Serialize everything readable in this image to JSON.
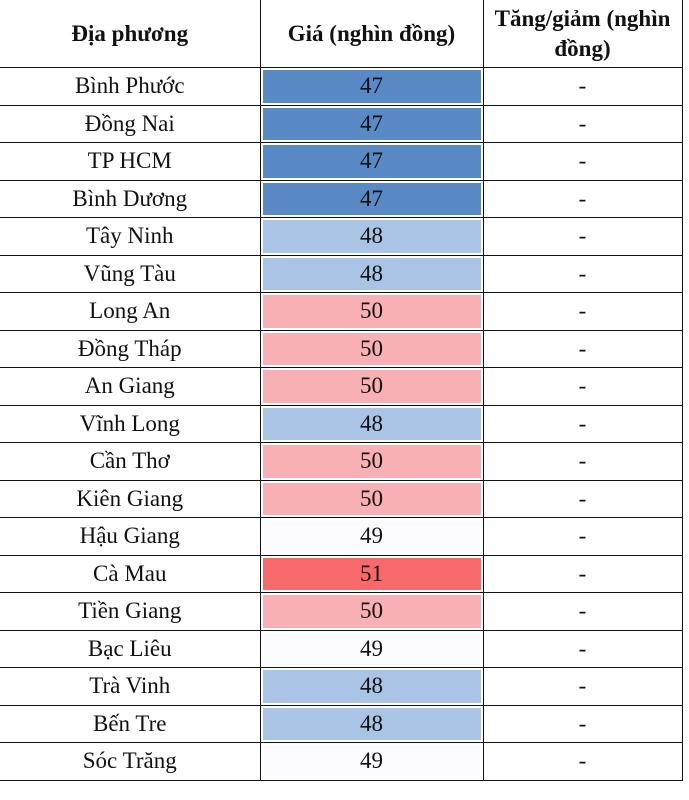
{
  "headers": {
    "location": "Địa phương",
    "price": "Giá (nghìn đồng)",
    "change": "Tăng/giảm (nghìn đồng)"
  },
  "scale_colors": {
    "47": "#5a8ac6",
    "48": "#a9c4e4",
    "49": "#fcfcff",
    "50": "#f8b0b5",
    "51": "#f8696b"
  },
  "rows": [
    {
      "location": "Bình Phước",
      "price": "47",
      "change": "-"
    },
    {
      "location": "Đồng Nai",
      "price": "47",
      "change": "-"
    },
    {
      "location": "TP HCM",
      "price": "47",
      "change": "-"
    },
    {
      "location": "Bình Dương",
      "price": "47",
      "change": "-"
    },
    {
      "location": "Tây Ninh",
      "price": "48",
      "change": "-"
    },
    {
      "location": "Vũng Tàu",
      "price": "48",
      "change": "-"
    },
    {
      "location": "Long An",
      "price": "50",
      "change": "-"
    },
    {
      "location": "Đồng Tháp",
      "price": "50",
      "change": "-"
    },
    {
      "location": "An Giang",
      "price": "50",
      "change": "-"
    },
    {
      "location": "Vĩnh Long",
      "price": "48",
      "change": "-"
    },
    {
      "location": "Cần Thơ",
      "price": "50",
      "change": "-"
    },
    {
      "location": "Kiên Giang",
      "price": "50",
      "change": "-"
    },
    {
      "location": "Hậu Giang",
      "price": "49",
      "change": "-"
    },
    {
      "location": "Cà Mau",
      "price": "51",
      "change": "-"
    },
    {
      "location": "Tiền Giang",
      "price": "50",
      "change": "-"
    },
    {
      "location": "Bạc Liêu",
      "price": "49",
      "change": "-"
    },
    {
      "location": "Trà Vinh",
      "price": "48",
      "change": "-"
    },
    {
      "location": "Bến Tre",
      "price": "48",
      "change": "-"
    },
    {
      "location": "Sóc Trăng",
      "price": "49",
      "change": "-"
    }
  ]
}
